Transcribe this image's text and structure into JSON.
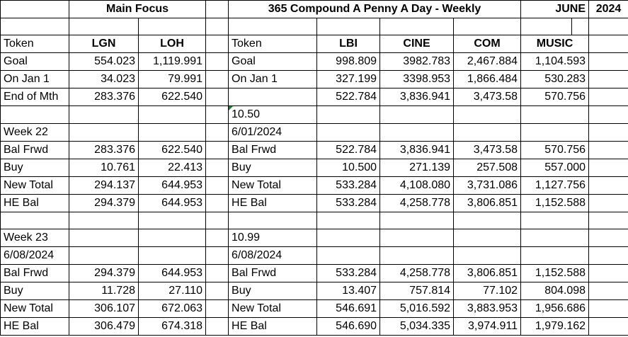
{
  "headers": {
    "main_focus": "Main Focus",
    "compound_title": "365 Compound A Penny A Day - Weekly",
    "month": "JUNE",
    "year": "2024"
  },
  "tokens_row": {
    "label_left": "Token",
    "lgn": "LGN",
    "loh": "LOH",
    "label_right": "Token",
    "lbi": "LBI",
    "cine": "CINE",
    "com": "COM",
    "music": "MUSIC"
  },
  "rows": {
    "goal": {
      "label_left": "Goal",
      "lgn": "554.023",
      "loh": "1,119.991",
      "label_right": "Goal",
      "lbi": "998.809",
      "cine": "3982.783",
      "com": "2,467.884",
      "music": "1,104.593"
    },
    "jan1": {
      "label_left": "On Jan 1",
      "lgn": "34.023",
      "loh": "79.991",
      "label_right": "On Jan 1",
      "lbi": "327.199",
      "cine": "3398.953",
      "com": "1,866.484",
      "music": "530.283"
    },
    "eom": {
      "label_left": "End of Mth",
      "lgn": "283.376",
      "loh": "622.540",
      "label_right": "",
      "lbi": "522.784",
      "cine": "3,836.941",
      "com": "3,473.58",
      "music": "570.756"
    },
    "rate1": {
      "right_label": "10.50"
    },
    "week22": {
      "left_label": "Week 22",
      "right_label": "6/01/2024"
    },
    "w22_bal": {
      "label_left": "Bal Frwd",
      "lgn": "283.376",
      "loh": "622.540",
      "label_right": "Bal Frwd",
      "lbi": "522.784",
      "cine": "3,836.941",
      "com": "3,473.58",
      "music": "570.756"
    },
    "w22_buy": {
      "label_left": "Buy",
      "lgn": "10.761",
      "loh": "22.413",
      "label_right": "Buy",
      "lbi": "10.500",
      "cine": "271.139",
      "com": "257.508",
      "music": "557.000"
    },
    "w22_new": {
      "label_left": "New Total",
      "lgn": "294.137",
      "loh": "644.953",
      "label_right": "New Total",
      "lbi": "533.284",
      "cine": "4,108.080",
      "com": "3,731.086",
      "music": "1,127.756"
    },
    "w22_he": {
      "label_left": "HE Bal",
      "lgn": "294.379",
      "loh": "644.953",
      "label_right": "HE Bal",
      "lbi": "533.284",
      "cine": "4,258.778",
      "com": "3,806.851",
      "music": "1,152.588"
    },
    "week23": {
      "left_label": "Week 23",
      "right_label": "10.99"
    },
    "date23": {
      "left_label": "6/08/2024",
      "right_label": "6/08/2024"
    },
    "w23_bal": {
      "label_left": "Bal Frwd",
      "lgn": "294.379",
      "loh": "644.953",
      "label_right": "Bal Frwd",
      "lbi": "533.284",
      "cine": "4,258.778",
      "com": "3,806.851",
      "music": "1,152.588"
    },
    "w23_buy": {
      "label_left": "Buy",
      "lgn": "11.728",
      "loh": "27.110",
      "label_right": "Buy",
      "lbi": "13.407",
      "cine": "757.814",
      "com": "77.102",
      "music": "804.098"
    },
    "w23_new": {
      "label_left": "New Total",
      "lgn": "306.107",
      "loh": "672.063",
      "label_right": "New Total",
      "lbi": "546.691",
      "cine": "5,016.592",
      "com": "3,883.953",
      "music": "1,956.686"
    },
    "w23_he": {
      "label_left": "HE Bal",
      "lgn": "306.479",
      "loh": "674.318",
      "label_right": "HE Bal",
      "lbi": "546.690",
      "cine": "5,034.335",
      "com": "3,974.911",
      "music": "1,979.162"
    }
  },
  "colors": {
    "grid_line": "#000000",
    "comment_marker": "#1e7a33"
  }
}
